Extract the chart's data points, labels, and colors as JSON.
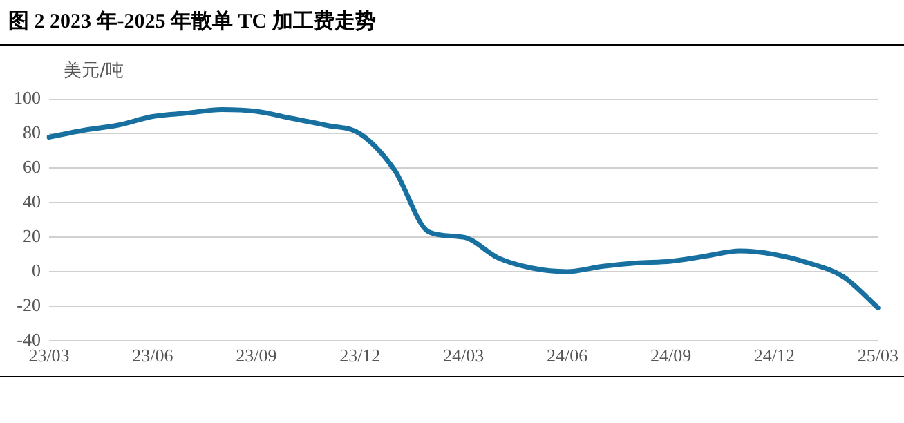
{
  "chart_data": {
    "type": "line",
    "title": "图 2 2023 年-2025 年散单 TC 加工费走势",
    "ylabel": "美元/吨",
    "categories": [
      "23/03",
      null,
      null,
      "23/06",
      null,
      null,
      "23/09",
      null,
      null,
      "23/12",
      null,
      null,
      "24/03",
      null,
      null,
      "24/06",
      null,
      null,
      "24/09",
      null,
      null,
      "24/12",
      null,
      null,
      "25/03"
    ],
    "series": [
      {
        "color": "#17709f",
        "values": [
          78,
          82,
          85,
          90,
          92,
          94,
          93,
          89,
          85,
          80,
          59,
          23,
          20,
          8,
          2,
          0,
          3,
          5,
          6,
          9,
          12,
          10,
          5,
          -3,
          -21
        ]
      }
    ],
    "ylim": [
      -40,
      100
    ],
    "yticks": [
      -40,
      -20,
      0,
      20,
      40,
      60,
      80,
      100
    ],
    "grid": "y",
    "legend": false,
    "marker": "none",
    "line_style": "solid"
  }
}
